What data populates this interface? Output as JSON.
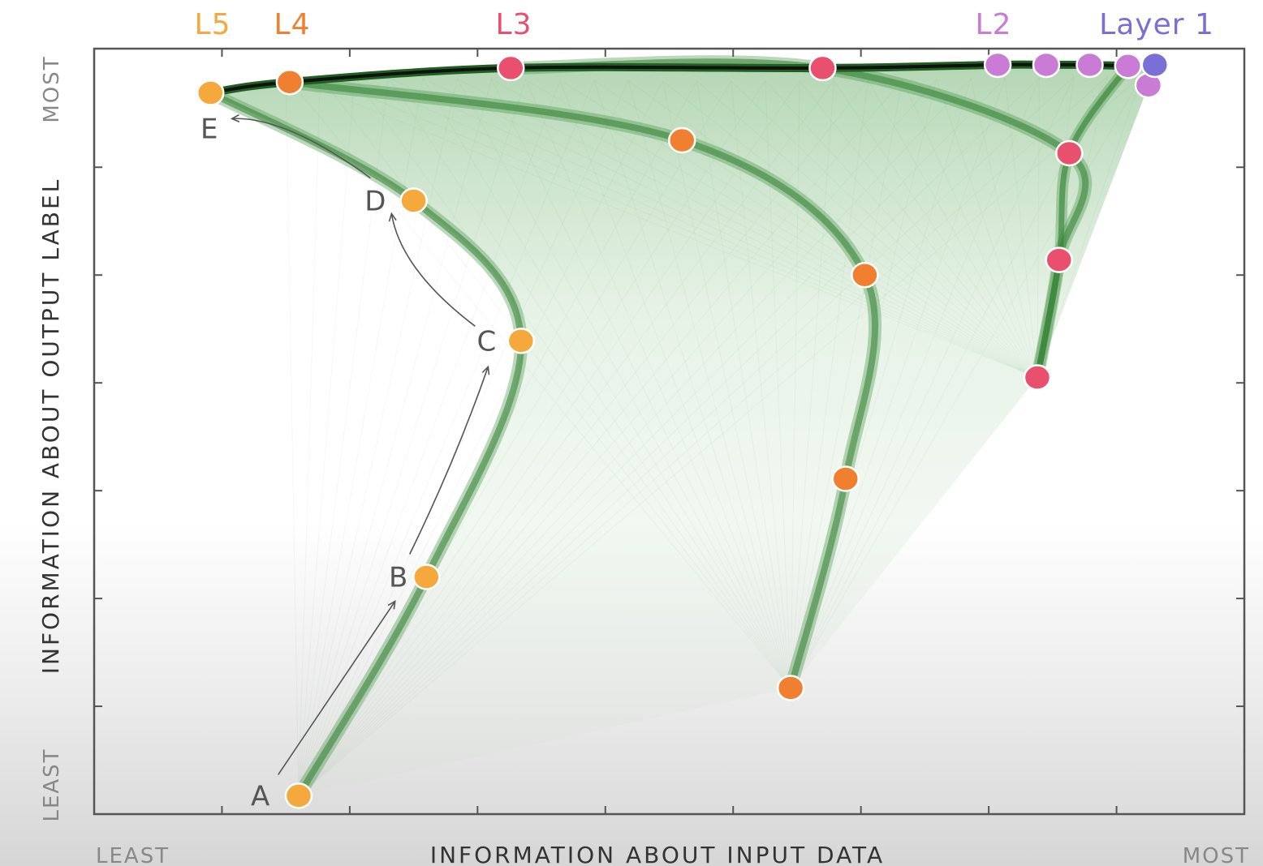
{
  "chart_data": {
    "type": "line",
    "xlabel": "INFORMATION ABOUT INPUT DATA",
    "ylabel": "INFORMATION ABOUT OUTPUT LABEL",
    "x_low_label": "LEAST",
    "x_high_label": "MOST",
    "y_low_label": "LEAST",
    "y_high_label": "MOST",
    "xlim": [
      0,
      9
    ],
    "ylim": [
      0,
      7.1
    ],
    "grid": false,
    "series": [
      {
        "name": "Layer 1",
        "color": "#7a6fd6",
        "points": [
          {
            "x": 8.3,
            "y": 6.95
          }
        ]
      },
      {
        "name": "L2",
        "color": "#c97bd6",
        "points": [
          {
            "x": 7.07,
            "y": 6.95
          },
          {
            "x": 7.45,
            "y": 6.95
          },
          {
            "x": 7.79,
            "y": 6.95
          },
          {
            "x": 8.09,
            "y": 6.94
          },
          {
            "x": 8.25,
            "y": 6.76
          }
        ]
      },
      {
        "name": "L3",
        "color": "#e8506e",
        "points": [
          {
            "x": 3.26,
            "y": 6.92
          },
          {
            "x": 5.7,
            "y": 6.92
          },
          {
            "x": 7.63,
            "y": 6.13
          },
          {
            "x": 7.55,
            "y": 5.14
          },
          {
            "x": 7.38,
            "y": 4.05
          }
        ]
      },
      {
        "name": "L4",
        "color": "#f08030",
        "points": [
          {
            "x": 1.53,
            "y": 6.79
          },
          {
            "x": 4.6,
            "y": 6.25
          },
          {
            "x": 6.03,
            "y": 5.0
          },
          {
            "x": 5.88,
            "y": 3.11
          },
          {
            "x": 5.45,
            "y": 1.17
          }
        ]
      },
      {
        "name": "L5",
        "color": "#f5a93c",
        "points": [
          {
            "x": 0.91,
            "y": 6.69
          },
          {
            "x": 2.5,
            "y": 5.69
          },
          {
            "x": 3.34,
            "y": 4.39
          },
          {
            "x": 2.6,
            "y": 2.2
          },
          {
            "x": 1.6,
            "y": 0.17
          }
        ]
      }
    ],
    "annotations": [
      {
        "text": "A",
        "x": 1.3,
        "y": 0.17
      },
      {
        "text": "B",
        "x": 2.38,
        "y": 2.2
      },
      {
        "text": "C",
        "x": 3.07,
        "y": 4.39
      },
      {
        "text": "D",
        "x": 2.2,
        "y": 5.69
      },
      {
        "text": "E",
        "x": 0.9,
        "y": 6.36
      }
    ],
    "layer_labels": [
      {
        "text": "L5",
        "color": "#f5a93c"
      },
      {
        "text": "L4",
        "color": "#f08030"
      },
      {
        "text": "L3",
        "color": "#e8506e"
      },
      {
        "text": "L2",
        "color": "#c97bd6"
      },
      {
        "text": "Layer 1",
        "color": "#7a6fd6"
      }
    ]
  }
}
